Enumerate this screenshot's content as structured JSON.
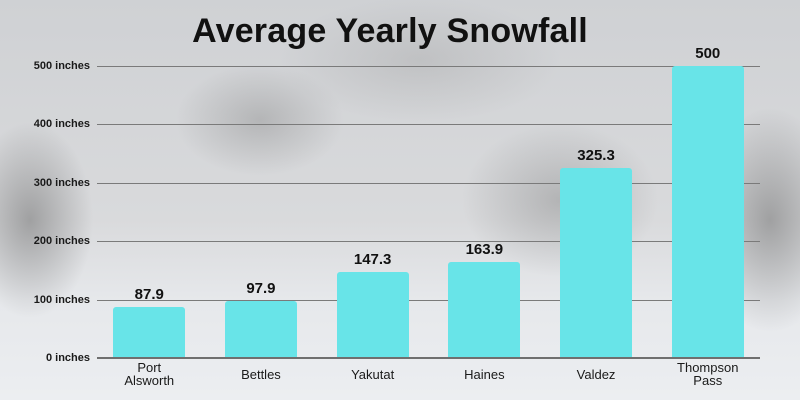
{
  "chart": {
    "title": "Average Yearly Snowfall",
    "bar_color": "#68E4E8",
    "y_ticks": [
      "0 inches",
      "100 inches",
      "200 inches",
      "300 inches",
      "400 inches",
      "500 inches"
    ],
    "bars": [
      {
        "label_line1": "Port",
        "label_line2": "Alsworth",
        "value": "87.9"
      },
      {
        "label_line1": "Bettles",
        "label_line2": "",
        "value": "97.9"
      },
      {
        "label_line1": "Yakutat",
        "label_line2": "",
        "value": "147.3"
      },
      {
        "label_line1": "Haines",
        "label_line2": "",
        "value": "163.9"
      },
      {
        "label_line1": "Valdez",
        "label_line2": "",
        "value": "325.3"
      },
      {
        "label_line1": "Thompson",
        "label_line2": "Pass",
        "value": "500"
      }
    ]
  },
  "chart_data": {
    "type": "bar",
    "title": "Average Yearly Snowfall",
    "categories": [
      "Port Alsworth",
      "Bettles",
      "Yakutat",
      "Haines",
      "Valdez",
      "Thompson Pass"
    ],
    "values": [
      87.9,
      97.9,
      147.3,
      163.9,
      325.3,
      500
    ],
    "xlabel": "",
    "ylabel": "",
    "y_tick_labels": [
      "0 inches",
      "100 inches",
      "200 inches",
      "300 inches",
      "400 inches",
      "500 inches"
    ],
    "ylim": [
      0,
      500
    ],
    "grid": true,
    "legend": null,
    "data_labels": true,
    "bar_color": "#68E4E8"
  }
}
